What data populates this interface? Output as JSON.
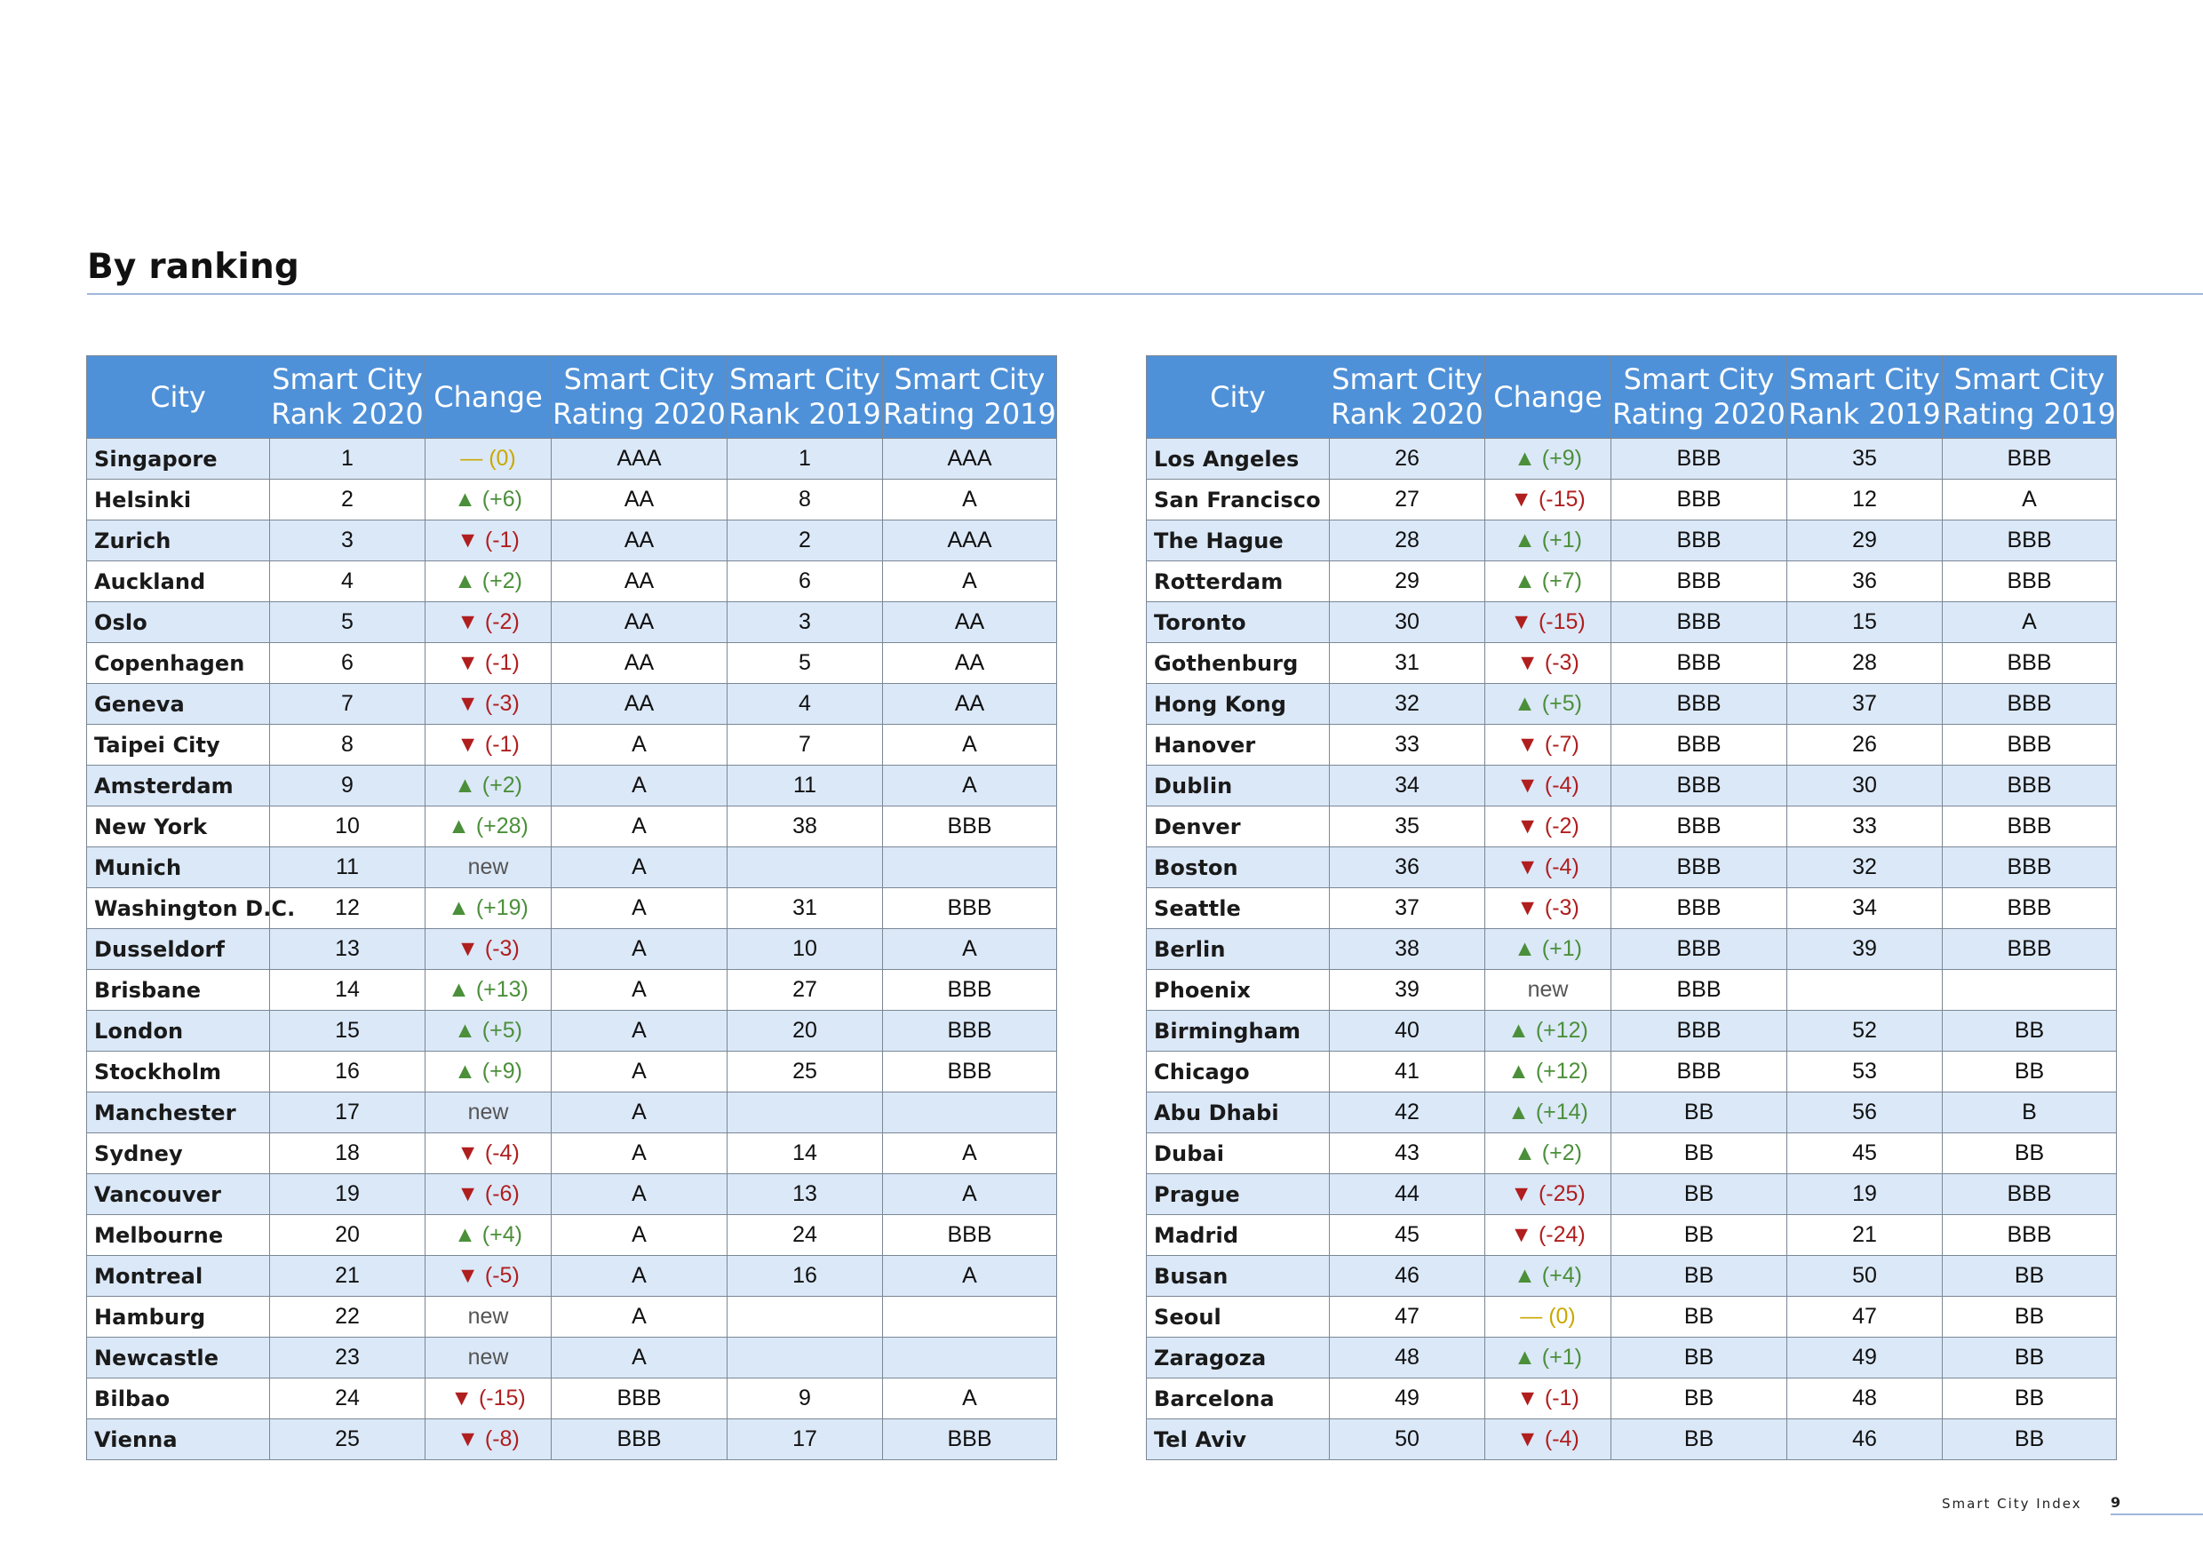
{
  "page": {
    "title": "By ranking",
    "footer_label": "Smart City Index",
    "page_number": "9",
    "colors": {
      "header_bg": "#4f91d8",
      "row_alt_bg": "#dbe8f8",
      "up": "#4b8f3a",
      "down": "#b01e1e",
      "same": "#c9a900",
      "rule": "#9fb7d9"
    }
  },
  "table": {
    "columns": [
      {
        "line1": "City",
        "line2": ""
      },
      {
        "line1": "Smart City",
        "line2": "Rank 2020"
      },
      {
        "line1": "Change",
        "line2": ""
      },
      {
        "line1": "Smart City",
        "line2": "Rating 2020"
      },
      {
        "line1": "Smart City",
        "line2": "Rank 2019"
      },
      {
        "line1": "Smart City",
        "line2": "Rating 2019"
      }
    ],
    "left_rows": [
      {
        "city": "Singapore",
        "rank2020": "1",
        "change": "— (0)",
        "change_dir": "same",
        "rating2020": "AAA",
        "rank2019": "1",
        "rating2019": "AAA"
      },
      {
        "city": "Helsinki",
        "rank2020": "2",
        "change": "▲ (+6)",
        "change_dir": "up",
        "rating2020": "AA",
        "rank2019": "8",
        "rating2019": "A"
      },
      {
        "city": "Zurich",
        "rank2020": "3",
        "change": "▼ (-1)",
        "change_dir": "down",
        "rating2020": "AA",
        "rank2019": "2",
        "rating2019": "AAA"
      },
      {
        "city": "Auckland",
        "rank2020": "4",
        "change": "▲ (+2)",
        "change_dir": "up",
        "rating2020": "AA",
        "rank2019": "6",
        "rating2019": "A"
      },
      {
        "city": "Oslo",
        "rank2020": "5",
        "change": "▼ (-2)",
        "change_dir": "down",
        "rating2020": "AA",
        "rank2019": "3",
        "rating2019": "AA"
      },
      {
        "city": "Copenhagen",
        "rank2020": "6",
        "change": "▼ (-1)",
        "change_dir": "down",
        "rating2020": "AA",
        "rank2019": "5",
        "rating2019": "AA"
      },
      {
        "city": "Geneva",
        "rank2020": "7",
        "change": "▼ (-3)",
        "change_dir": "down",
        "rating2020": "AA",
        "rank2019": "4",
        "rating2019": "AA"
      },
      {
        "city": "Taipei City",
        "rank2020": "8",
        "change": "▼ (-1)",
        "change_dir": "down",
        "rating2020": "A",
        "rank2019": "7",
        "rating2019": "A"
      },
      {
        "city": "Amsterdam",
        "rank2020": "9",
        "change": "▲ (+2)",
        "change_dir": "up",
        "rating2020": "A",
        "rank2019": "11",
        "rating2019": "A"
      },
      {
        "city": "New York",
        "rank2020": "10",
        "change": "▲ (+28)",
        "change_dir": "up",
        "rating2020": "A",
        "rank2019": "38",
        "rating2019": "BBB"
      },
      {
        "city": "Munich",
        "rank2020": "11",
        "change": "new",
        "change_dir": "new",
        "rating2020": "A",
        "rank2019": "",
        "rating2019": ""
      },
      {
        "city": "Washington D.C.",
        "rank2020": "12",
        "change": "▲ (+19)",
        "change_dir": "up",
        "rating2020": "A",
        "rank2019": "31",
        "rating2019": "BBB"
      },
      {
        "city": "Dusseldorf",
        "rank2020": "13",
        "change": "▼ (-3)",
        "change_dir": "down",
        "rating2020": "A",
        "rank2019": "10",
        "rating2019": "A"
      },
      {
        "city": "Brisbane",
        "rank2020": "14",
        "change": "▲ (+13)",
        "change_dir": "up",
        "rating2020": "A",
        "rank2019": "27",
        "rating2019": "BBB"
      },
      {
        "city": "London",
        "rank2020": "15",
        "change": "▲ (+5)",
        "change_dir": "up",
        "rating2020": "A",
        "rank2019": "20",
        "rating2019": "BBB"
      },
      {
        "city": "Stockholm",
        "rank2020": "16",
        "change": "▲ (+9)",
        "change_dir": "up",
        "rating2020": "A",
        "rank2019": "25",
        "rating2019": "BBB"
      },
      {
        "city": "Manchester",
        "rank2020": "17",
        "change": "new",
        "change_dir": "new",
        "rating2020": "A",
        "rank2019": "",
        "rating2019": ""
      },
      {
        "city": "Sydney",
        "rank2020": "18",
        "change": "▼ (-4)",
        "change_dir": "down",
        "rating2020": "A",
        "rank2019": "14",
        "rating2019": "A"
      },
      {
        "city": "Vancouver",
        "rank2020": "19",
        "change": "▼ (-6)",
        "change_dir": "down",
        "rating2020": "A",
        "rank2019": "13",
        "rating2019": "A"
      },
      {
        "city": "Melbourne",
        "rank2020": "20",
        "change": "▲ (+4)",
        "change_dir": "up",
        "rating2020": "A",
        "rank2019": "24",
        "rating2019": "BBB"
      },
      {
        "city": "Montreal",
        "rank2020": "21",
        "change": "▼ (-5)",
        "change_dir": "down",
        "rating2020": "A",
        "rank2019": "16",
        "rating2019": "A"
      },
      {
        "city": "Hamburg",
        "rank2020": "22",
        "change": "new",
        "change_dir": "new",
        "rating2020": "A",
        "rank2019": "",
        "rating2019": ""
      },
      {
        "city": "Newcastle",
        "rank2020": "23",
        "change": "new",
        "change_dir": "new",
        "rating2020": "A",
        "rank2019": "",
        "rating2019": ""
      },
      {
        "city": "Bilbao",
        "rank2020": "24",
        "change": "▼ (-15)",
        "change_dir": "down",
        "rating2020": "BBB",
        "rank2019": "9",
        "rating2019": "A"
      },
      {
        "city": "Vienna",
        "rank2020": "25",
        "change": "▼ (-8)",
        "change_dir": "down",
        "rating2020": "BBB",
        "rank2019": "17",
        "rating2019": "BBB"
      }
    ],
    "right_rows": [
      {
        "city": "Los Angeles",
        "rank2020": "26",
        "change": "▲ (+9)",
        "change_dir": "up",
        "rating2020": "BBB",
        "rank2019": "35",
        "rating2019": "BBB"
      },
      {
        "city": "San Francisco",
        "rank2020": "27",
        "change": "▼ (-15)",
        "change_dir": "down",
        "rating2020": "BBB",
        "rank2019": "12",
        "rating2019": "A"
      },
      {
        "city": "The Hague",
        "rank2020": "28",
        "change": "▲ (+1)",
        "change_dir": "up",
        "rating2020": "BBB",
        "rank2019": "29",
        "rating2019": "BBB"
      },
      {
        "city": "Rotterdam",
        "rank2020": "29",
        "change": "▲ (+7)",
        "change_dir": "up",
        "rating2020": "BBB",
        "rank2019": "36",
        "rating2019": "BBB"
      },
      {
        "city": "Toronto",
        "rank2020": "30",
        "change": "▼ (-15)",
        "change_dir": "down",
        "rating2020": "BBB",
        "rank2019": "15",
        "rating2019": "A"
      },
      {
        "city": "Gothenburg",
        "rank2020": "31",
        "change": "▼ (-3)",
        "change_dir": "down",
        "rating2020": "BBB",
        "rank2019": "28",
        "rating2019": "BBB"
      },
      {
        "city": "Hong Kong",
        "rank2020": "32",
        "change": "▲ (+5)",
        "change_dir": "up",
        "rating2020": "BBB",
        "rank2019": "37",
        "rating2019": "BBB"
      },
      {
        "city": "Hanover",
        "rank2020": "33",
        "change": "▼ (-7)",
        "change_dir": "down",
        "rating2020": "BBB",
        "rank2019": "26",
        "rating2019": "BBB"
      },
      {
        "city": "Dublin",
        "rank2020": "34",
        "change": "▼ (-4)",
        "change_dir": "down",
        "rating2020": "BBB",
        "rank2019": "30",
        "rating2019": "BBB"
      },
      {
        "city": "Denver",
        "rank2020": "35",
        "change": "▼ (-2)",
        "change_dir": "down",
        "rating2020": "BBB",
        "rank2019": "33",
        "rating2019": "BBB"
      },
      {
        "city": "Boston",
        "rank2020": "36",
        "change": "▼ (-4)",
        "change_dir": "down",
        "rating2020": "BBB",
        "rank2019": "32",
        "rating2019": "BBB"
      },
      {
        "city": "Seattle",
        "rank2020": "37",
        "change": "▼ (-3)",
        "change_dir": "down",
        "rating2020": "BBB",
        "rank2019": "34",
        "rating2019": "BBB"
      },
      {
        "city": "Berlin",
        "rank2020": "38",
        "change": "▲ (+1)",
        "change_dir": "up",
        "rating2020": "BBB",
        "rank2019": "39",
        "rating2019": "BBB"
      },
      {
        "city": "Phoenix",
        "rank2020": "39",
        "change": "new",
        "change_dir": "new",
        "rating2020": "BBB",
        "rank2019": "",
        "rating2019": ""
      },
      {
        "city": "Birmingham",
        "rank2020": "40",
        "change": "▲ (+12)",
        "change_dir": "up",
        "rating2020": "BBB",
        "rank2019": "52",
        "rating2019": "BB"
      },
      {
        "city": "Chicago",
        "rank2020": "41",
        "change": "▲ (+12)",
        "change_dir": "up",
        "rating2020": "BBB",
        "rank2019": "53",
        "rating2019": "BB"
      },
      {
        "city": "Abu Dhabi",
        "rank2020": "42",
        "change": "▲ (+14)",
        "change_dir": "up",
        "rating2020": "BB",
        "rank2019": "56",
        "rating2019": "B"
      },
      {
        "city": "Dubai",
        "rank2020": "43",
        "change": "▲ (+2)",
        "change_dir": "up",
        "rating2020": "BB",
        "rank2019": "45",
        "rating2019": "BB"
      },
      {
        "city": "Prague",
        "rank2020": "44",
        "change": "▼ (-25)",
        "change_dir": "down",
        "rating2020": "BB",
        "rank2019": "19",
        "rating2019": "BBB"
      },
      {
        "city": "Madrid",
        "rank2020": "45",
        "change": "▼ (-24)",
        "change_dir": "down",
        "rating2020": "BB",
        "rank2019": "21",
        "rating2019": "BBB"
      },
      {
        "city": "Busan",
        "rank2020": "46",
        "change": "▲ (+4)",
        "change_dir": "up",
        "rating2020": "BB",
        "rank2019": "50",
        "rating2019": "BB"
      },
      {
        "city": "Seoul",
        "rank2020": "47",
        "change": "— (0)",
        "change_dir": "same",
        "rating2020": "BB",
        "rank2019": "47",
        "rating2019": "BB"
      },
      {
        "city": "Zaragoza",
        "rank2020": "48",
        "change": "▲ (+1)",
        "change_dir": "up",
        "rating2020": "BB",
        "rank2019": "49",
        "rating2019": "BB"
      },
      {
        "city": "Barcelona",
        "rank2020": "49",
        "change": "▼ (-1)",
        "change_dir": "down",
        "rating2020": "BB",
        "rank2019": "48",
        "rating2019": "BB"
      },
      {
        "city": "Tel Aviv",
        "rank2020": "50",
        "change": "▼ (-4)",
        "change_dir": "down",
        "rating2020": "BB",
        "rank2019": "46",
        "rating2019": "BB"
      }
    ]
  }
}
